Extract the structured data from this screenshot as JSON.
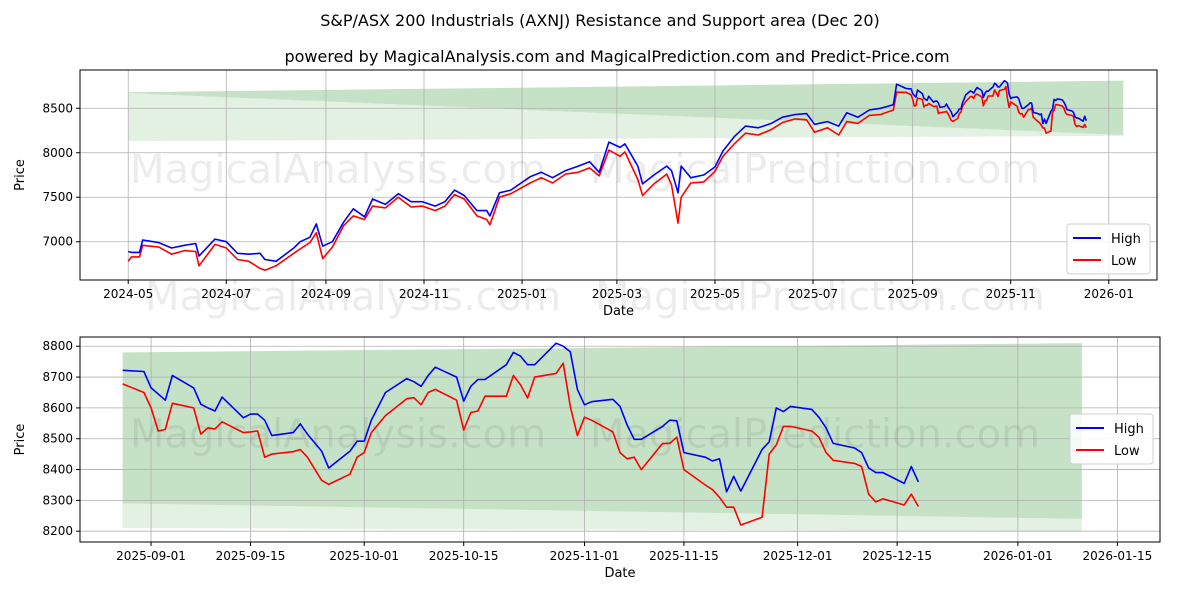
{
  "title": "S&P/ASX 200 Industrials (AXNJ) Resistance and Support area (Dec 20)",
  "subtitle": "powered by MagicalAnalysis.com and MagicalPrediction.com and Predict-Price.com",
  "watermarks": [
    "MagicalAnalysis.com",
    "MagicalPrediction.com"
  ],
  "colors": {
    "high": "#0000ff",
    "low": "#ff0000",
    "band_dark": "#c6e2c6",
    "band_light": "#e3f1e3"
  },
  "chart_data": [
    {
      "type": "line",
      "xlabel": "Date",
      "ylabel": "Price",
      "xticks": [
        "2024-05",
        "2024-07",
        "2024-09",
        "2024-11",
        "2025-01",
        "2025-03",
        "2025-05",
        "2025-07",
        "2025-09",
        "2025-11",
        "2026-01"
      ],
      "yticks": [
        7000,
        7500,
        8000,
        8500
      ],
      "ylim": [
        6570,
        8930
      ],
      "xlim": [
        "2024-04-01",
        "2026-01-31"
      ],
      "grid": true,
      "legend": {
        "position": "lower-right",
        "entries": [
          "High",
          "Low"
        ]
      },
      "bands": {
        "start": "2024-05-01",
        "end": "2026-01-10",
        "dark_upper": [
          8680,
          8810
        ],
        "dark_lower": [
          8670,
          8200
        ],
        "light_lower": [
          8130,
          8190
        ]
      },
      "series_note": "continues with detail chart points after 2025-08-22",
      "points": [
        [
          "2024-05-01",
          6890,
          6780
        ],
        [
          "2024-05-03",
          6880,
          6830
        ],
        [
          "2024-05-08",
          6880,
          6830
        ],
        [
          "2024-05-10",
          7020,
          6960
        ],
        [
          "2024-05-20",
          6990,
          6940
        ],
        [
          "2024-05-28",
          6930,
          6860
        ],
        [
          "2024-06-05",
          6960,
          6900
        ],
        [
          "2024-06-12",
          6980,
          6890
        ],
        [
          "2024-06-14",
          6840,
          6730
        ],
        [
          "2024-06-24",
          7030,
          6970
        ],
        [
          "2024-07-01",
          7000,
          6930
        ],
        [
          "2024-07-08",
          6870,
          6800
        ],
        [
          "2024-07-15",
          6860,
          6780
        ],
        [
          "2024-07-22",
          6870,
          6700
        ],
        [
          "2024-07-25",
          6800,
          6680
        ],
        [
          "2024-08-01",
          6780,
          6730
        ],
        [
          "2024-08-12",
          6930,
          6870
        ],
        [
          "2024-08-16",
          7000,
          6920
        ],
        [
          "2024-08-22",
          7050,
          6990
        ],
        [
          "2024-08-26",
          7200,
          7100
        ],
        [
          "2024-08-30",
          6950,
          6810
        ],
        [
          "2024-09-05",
          7000,
          6940
        ],
        [
          "2024-09-12",
          7220,
          7180
        ],
        [
          "2024-09-18",
          7370,
          7290
        ],
        [
          "2024-09-25",
          7280,
          7250
        ],
        [
          "2024-09-30",
          7480,
          7400
        ],
        [
          "2024-10-08",
          7420,
          7380
        ],
        [
          "2024-10-16",
          7540,
          7500
        ],
        [
          "2024-10-24",
          7450,
          7390
        ],
        [
          "2024-10-31",
          7450,
          7400
        ],
        [
          "2024-11-08",
          7400,
          7350
        ],
        [
          "2024-11-14",
          7450,
          7400
        ],
        [
          "2024-11-20",
          7580,
          7530
        ],
        [
          "2024-11-26",
          7520,
          7480
        ],
        [
          "2024-12-04",
          7350,
          7290
        ],
        [
          "2024-12-10",
          7350,
          7250
        ],
        [
          "2024-12-12",
          7290,
          7190
        ],
        [
          "2024-12-18",
          7550,
          7500
        ],
        [
          "2024-12-25",
          7580,
          7540
        ],
        [
          "2025-01-06",
          7730,
          7660
        ],
        [
          "2025-01-13",
          7780,
          7720
        ],
        [
          "2025-01-20",
          7720,
          7660
        ],
        [
          "2025-01-28",
          7800,
          7760
        ],
        [
          "2025-02-05",
          7850,
          7780
        ],
        [
          "2025-02-12",
          7900,
          7830
        ],
        [
          "2025-02-18",
          7780,
          7740
        ],
        [
          "2025-02-24",
          8120,
          8030
        ],
        [
          "2025-03-03",
          8060,
          7960
        ],
        [
          "2025-03-06",
          8100,
          8010
        ],
        [
          "2025-03-14",
          7850,
          7700
        ],
        [
          "2025-03-17",
          7650,
          7520
        ],
        [
          "2025-03-24",
          7750,
          7650
        ],
        [
          "2025-04-01",
          7850,
          7760
        ],
        [
          "2025-04-04",
          7800,
          7640
        ],
        [
          "2025-04-08",
          7550,
          7210
        ],
        [
          "2025-04-10",
          7850,
          7500
        ],
        [
          "2025-04-16",
          7720,
          7660
        ],
        [
          "2025-04-24",
          7750,
          7670
        ],
        [
          "2025-05-01",
          7840,
          7790
        ],
        [
          "2025-05-06",
          8020,
          7960
        ],
        [
          "2025-05-13",
          8180,
          8100
        ],
        [
          "2025-05-20",
          8300,
          8220
        ],
        [
          "2025-05-28",
          8280,
          8200
        ],
        [
          "2025-06-05",
          8330,
          8260
        ],
        [
          "2025-06-12",
          8400,
          8340
        ],
        [
          "2025-06-20",
          8430,
          8380
        ],
        [
          "2025-06-27",
          8440,
          8370
        ],
        [
          "2025-07-02",
          8320,
          8230
        ],
        [
          "2025-07-10",
          8350,
          8280
        ],
        [
          "2025-07-17",
          8300,
          8200
        ],
        [
          "2025-07-22",
          8450,
          8350
        ],
        [
          "2025-07-29",
          8400,
          8330
        ],
        [
          "2025-08-05",
          8480,
          8420
        ],
        [
          "2025-08-12",
          8500,
          8430
        ],
        [
          "2025-08-20",
          8540,
          8480
        ],
        [
          "2025-08-22",
          8770,
          8680
        ]
      ]
    },
    {
      "type": "line",
      "xlabel": "Date",
      "ylabel": "Price",
      "xticks": [
        "2025-09-01",
        "2025-09-15",
        "2025-10-01",
        "2025-10-15",
        "2025-11-01",
        "2025-11-15",
        "2025-12-01",
        "2025-12-15",
        "2026-01-01",
        "2026-01-15"
      ],
      "yticks": [
        8200,
        8300,
        8400,
        8500,
        8600,
        8700,
        8800
      ],
      "ylim": [
        8165,
        8830
      ],
      "xlim": [
        "2025-08-22",
        "2026-01-21"
      ],
      "grid": true,
      "legend": {
        "position": "center-right",
        "entries": [
          "High",
          "Low"
        ]
      },
      "bands": {
        "start": "2025-08-28",
        "end": "2026-01-10",
        "dark_upper": [
          8780,
          8810
        ],
        "dark_lower": [
          8290,
          8240
        ],
        "light_lower": [
          8210,
          8200
        ]
      },
      "points": [
        [
          "2025-08-28",
          8722,
          8678
        ],
        [
          "2025-08-31",
          8718,
          8650
        ],
        [
          "2025-09-01",
          8665,
          8600
        ],
        [
          "2025-09-02",
          8645,
          8525
        ],
        [
          "2025-09-03",
          8625,
          8530
        ],
        [
          "2025-09-04",
          8705,
          8615
        ],
        [
          "2025-09-07",
          8665,
          8600
        ],
        [
          "2025-09-08",
          8612,
          8515
        ],
        [
          "2025-09-09",
          8600,
          8535
        ],
        [
          "2025-09-10",
          8590,
          8532
        ],
        [
          "2025-09-11",
          8635,
          8555
        ],
        [
          "2025-09-14",
          8568,
          8520
        ],
        [
          "2025-09-15",
          8580,
          8522
        ],
        [
          "2025-09-16",
          8580,
          8525
        ],
        [
          "2025-09-17",
          8560,
          8440
        ],
        [
          "2025-09-18",
          8510,
          8450
        ],
        [
          "2025-09-21",
          8520,
          8458
        ],
        [
          "2025-09-22",
          8548,
          8465
        ],
        [
          "2025-09-23",
          8515,
          8440
        ],
        [
          "2025-09-25",
          8460,
          8365
        ],
        [
          "2025-09-26",
          8405,
          8352
        ],
        [
          "2025-09-29",
          8460,
          8385
        ],
        [
          "2025-09-30",
          8492,
          8440
        ],
        [
          "2025-10-01",
          8492,
          8455
        ],
        [
          "2025-10-02",
          8560,
          8520
        ],
        [
          "2025-10-04",
          8650,
          8575
        ],
        [
          "2025-10-07",
          8695,
          8630
        ],
        [
          "2025-10-08",
          8685,
          8633
        ],
        [
          "2025-10-09",
          8670,
          8610
        ],
        [
          "2025-10-10",
          8705,
          8650
        ],
        [
          "2025-10-11",
          8732,
          8660
        ],
        [
          "2025-10-14",
          8700,
          8625
        ],
        [
          "2025-10-15",
          8622,
          8528
        ],
        [
          "2025-10-16",
          8670,
          8585
        ],
        [
          "2025-10-17",
          8692,
          8590
        ],
        [
          "2025-10-18",
          8692,
          8638
        ],
        [
          "2025-10-21",
          8740,
          8638
        ],
        [
          "2025-10-22",
          8780,
          8705
        ],
        [
          "2025-10-23",
          8768,
          8675
        ],
        [
          "2025-10-24",
          8740,
          8632
        ],
        [
          "2025-10-25",
          8740,
          8700
        ],
        [
          "2025-10-28",
          8810,
          8712
        ],
        [
          "2025-10-29",
          8800,
          8745
        ],
        [
          "2025-10-30",
          8782,
          8605
        ],
        [
          "2025-10-31",
          8660,
          8510
        ],
        [
          "2025-11-01",
          8610,
          8570
        ],
        [
          "2025-11-02",
          8620,
          8560
        ],
        [
          "2025-11-05",
          8628,
          8522
        ],
        [
          "2025-11-06",
          8605,
          8455
        ],
        [
          "2025-11-07",
          8545,
          8435
        ],
        [
          "2025-11-08",
          8498,
          8440
        ],
        [
          "2025-11-09",
          8498,
          8400
        ],
        [
          "2025-11-12",
          8540,
          8485
        ],
        [
          "2025-11-13",
          8560,
          8485
        ],
        [
          "2025-11-14",
          8558,
          8505
        ],
        [
          "2025-11-15",
          8455,
          8400
        ],
        [
          "2025-11-18",
          8440,
          8350
        ],
        [
          "2025-11-19",
          8428,
          8335
        ],
        [
          "2025-11-20",
          8435,
          8310
        ],
        [
          "2025-11-21",
          8328,
          8278
        ],
        [
          "2025-11-22",
          8378,
          8278
        ],
        [
          "2025-11-23",
          8330,
          8220
        ],
        [
          "2025-11-26",
          8465,
          8245
        ],
        [
          "2025-11-27",
          8490,
          8450
        ],
        [
          "2025-11-28",
          8600,
          8480
        ],
        [
          "2025-11-29",
          8588,
          8540
        ],
        [
          "2025-11-30",
          8605,
          8540
        ],
        [
          "2025-12-03",
          8595,
          8525
        ],
        [
          "2025-12-04",
          8570,
          8505
        ],
        [
          "2025-12-05",
          8535,
          8455
        ],
        [
          "2025-12-06",
          8485,
          8430
        ],
        [
          "2025-12-09",
          8470,
          8420
        ],
        [
          "2025-12-10",
          8455,
          8410
        ],
        [
          "2025-12-11",
          8405,
          8320
        ],
        [
          "2025-12-12",
          8390,
          8295
        ],
        [
          "2025-12-13",
          8390,
          8305
        ],
        [
          "2025-12-16",
          8355,
          8285
        ],
        [
          "2025-12-17",
          8410,
          8320
        ],
        [
          "2025-12-18",
          8360,
          8280
        ]
      ]
    }
  ]
}
